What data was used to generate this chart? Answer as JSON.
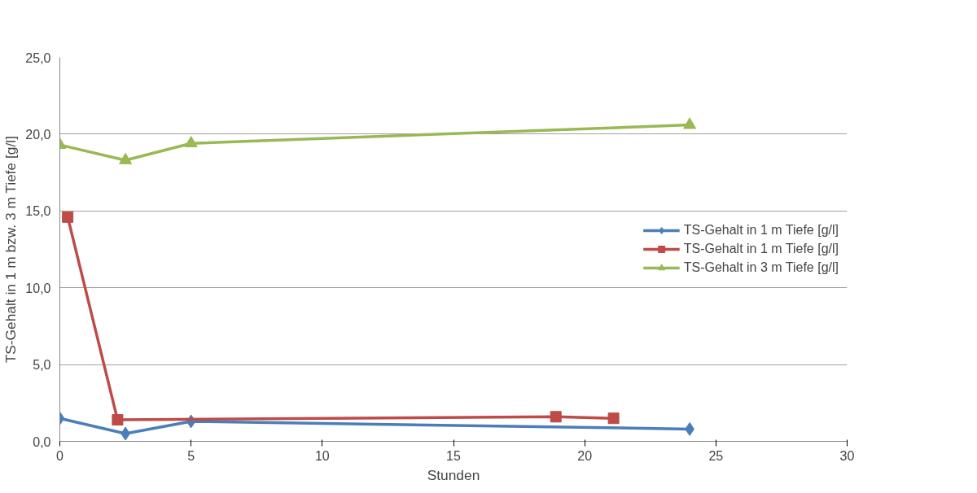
{
  "chart_data": {
    "type": "line",
    "xlabel": "Stunden",
    "ylabel": "TS-Gehalt in 1 m bzw. 3 m Tiefe [g/l]",
    "xlim": [
      0,
      30
    ],
    "xticks": [
      0,
      5,
      10,
      15,
      20,
      25,
      30
    ],
    "ylim": [
      0,
      25
    ],
    "yticks": [
      {
        "value": 0,
        "label": "0,0"
      },
      {
        "value": 5,
        "label": "5,0"
      },
      {
        "value": 10,
        "label": "10,0"
      },
      {
        "value": 15,
        "label": "15,0"
      },
      {
        "value": 20,
        "label": "20,0"
      },
      {
        "value": 25,
        "label": "25,0"
      }
    ],
    "grid": "y",
    "legend": "right",
    "series": [
      {
        "name": "TS-Gehalt in 1 m Tiefe [g/l]",
        "color": "#4a7ebb",
        "marker": "diamond",
        "x": [
          0,
          2.5,
          5,
          24
        ],
        "values": [
          1.5,
          0.5,
          1.3,
          0.8
        ]
      },
      {
        "name": "TS-Gehalt in 1 m Tiefe [g/l]",
        "color": "#be4b48",
        "marker": "square",
        "x": [
          0.3,
          2.2,
          18.9,
          21.1
        ],
        "values": [
          14.6,
          1.4,
          1.6,
          1.5
        ]
      },
      {
        "name": "TS-Gehalt in 3 m Tiefe [g/l]",
        "color": "#98b954",
        "marker": "triangle",
        "x": [
          0,
          2.5,
          5,
          24
        ],
        "values": [
          19.3,
          18.3,
          19.4,
          20.6
        ]
      }
    ]
  }
}
